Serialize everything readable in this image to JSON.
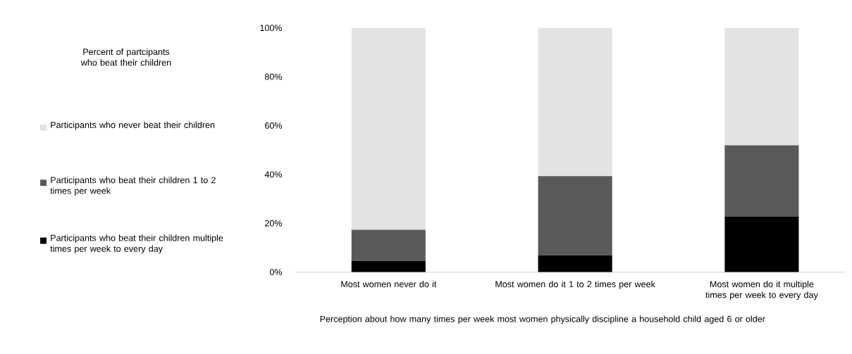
{
  "chart_data": {
    "type": "bar",
    "stacked": true,
    "legend": "left",
    "legend_title": "Percent of partcipants who beat their children",
    "xlabel": "Perception about how many times per week most women physically discipline a household child aged 6 or older",
    "categories": [
      "Most women never do it",
      "Most women do it 1 to 2 times per week",
      "Most women do it multiple times per week to every day"
    ],
    "series": [
      {
        "name": "Participants who beat their children multiple times per week to every day",
        "color": "#000000",
        "values": [
          4.6,
          6.9,
          22.8
        ]
      },
      {
        "name": "Participants who beat their children 1 to 2 times per week",
        "color": "#595959",
        "values": [
          12.7,
          32.4,
          29.1
        ]
      },
      {
        "name": "Participants who never beat their children",
        "color": "#e3e3e3",
        "values": [
          82.7,
          60.7,
          48.1
        ]
      }
    ],
    "ylim": [
      0,
      100
    ],
    "yticks": [
      {
        "value": 0,
        "label": "0%"
      },
      {
        "value": 20,
        "label": "20%"
      },
      {
        "value": 40,
        "label": "40%"
      },
      {
        "value": 60,
        "label": "60%"
      },
      {
        "value": 80,
        "label": "80%"
      },
      {
        "value": 100,
        "label": "100%"
      }
    ]
  }
}
